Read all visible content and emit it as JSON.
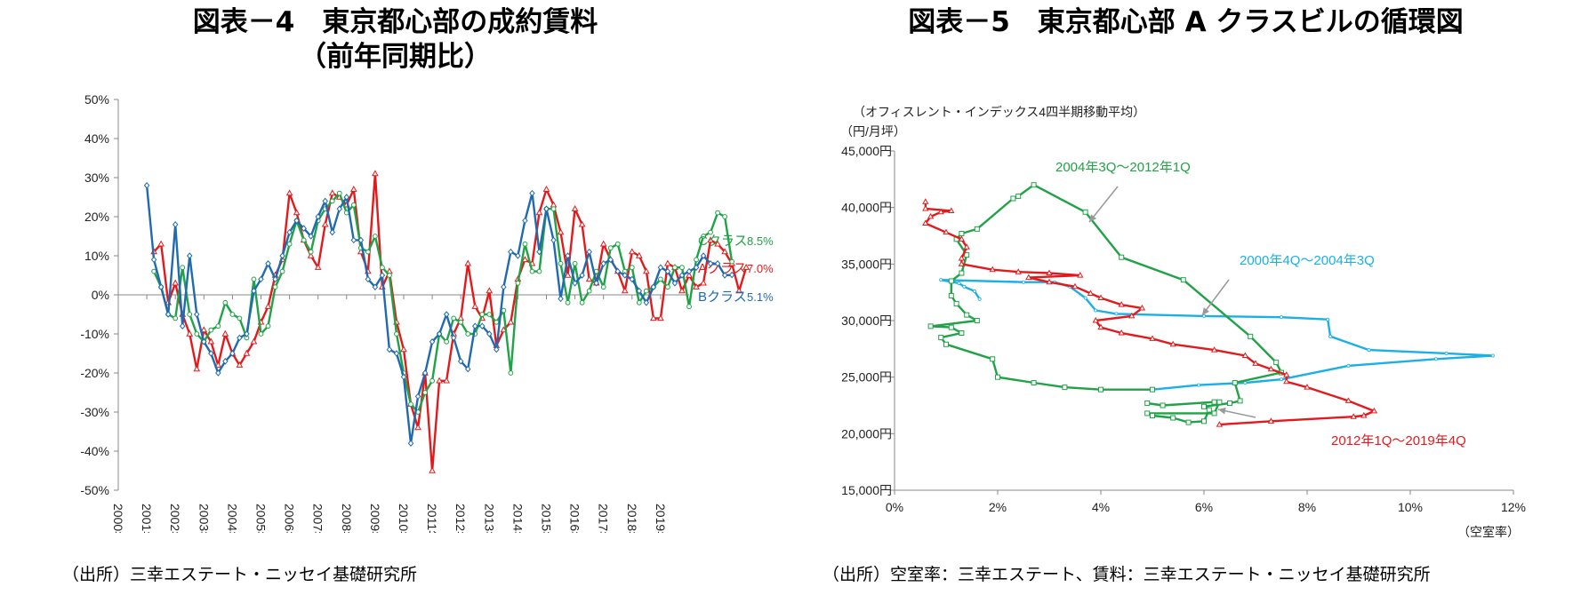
{
  "left": {
    "title_line1": "図表－4　東京都心部の成約賃料",
    "title_line2": "（前年同期比）",
    "source": "（出所）三幸エステート・ニッセイ基礎研究所"
  },
  "right": {
    "title": "図表－5　東京都心部 A クラスビルの循環図",
    "source": "（出所）空室率：三幸エステート、賃料：三幸エステート・ニッセイ基礎研究所"
  },
  "colors": {
    "red": "#e31a1c",
    "green": "#1fa346",
    "blue": "#1f6ab0",
    "lightblue": "#1ab0e6",
    "axis": "#888888"
  },
  "chart_data": [
    {
      "type": "line",
      "title": "図表－4　東京都心部の成約賃料（前年同期比）",
      "xlabel": "",
      "ylabel": "",
      "ylim": [
        -0.5,
        0.5
      ],
      "y_ticks": [
        "50%",
        "40%",
        "30%",
        "20%",
        "10%",
        "0%",
        "-10%",
        "-20%",
        "-30%",
        "-40%",
        "-50%"
      ],
      "x_ticks": [
        "2000年",
        "2001年",
        "2002年",
        "2003年",
        "2004年",
        "2005年",
        "2006年",
        "2007年",
        "2008年",
        "2009年",
        "2010年",
        "2011年",
        "2012年",
        "2013年",
        "2014年",
        "2015年",
        "2016年",
        "2017年",
        "2018年",
        "2019年"
      ],
      "x_unit": "quarter index from 2000年Q1",
      "series": [
        {
          "name": "Aクラス",
          "end_label": "Aクラス",
          "end_value": "7.0%",
          "color": "#e31a1c",
          "x_start": 5,
          "values": [
            0.11,
            0.13,
            -0.02,
            0.03,
            -0.05,
            -0.1,
            -0.19,
            -0.09,
            -0.12,
            -0.18,
            -0.1,
            -0.15,
            -0.18,
            -0.15,
            -0.12,
            -0.07,
            -0.03,
            0.05,
            0.09,
            0.26,
            0.21,
            0.14,
            0.1,
            0.07,
            0.18,
            0.26,
            0.25,
            0.23,
            0.27,
            0.11,
            0.06,
            0.31,
            0.02,
            0.06,
            -0.07,
            -0.14,
            -0.28,
            -0.34,
            -0.2,
            -0.45,
            -0.22,
            -0.22,
            -0.1,
            -0.06,
            0.08,
            -0.03,
            -0.06,
            0.01,
            -0.13,
            -0.09,
            -0.07,
            0.04,
            0.09,
            0.08,
            0.21,
            0.27,
            0.23,
            0.16,
            0.05,
            0.22,
            0.18,
            0.04,
            0.03,
            0.13,
            0.09,
            0.06,
            0.01,
            0.11,
            0.1,
            0.06,
            -0.06,
            -0.06,
            0.08,
            0.07,
            0.01,
            0.05,
            0.02,
            0.03,
            0.14,
            0.13,
            0.11,
            0.08,
            0.01,
            0.07
          ]
        },
        {
          "name": "Cクラス",
          "end_label": "Cクラス",
          "end_value": "8.5%",
          "color": "#1fa346",
          "x_start": 5,
          "values": [
            0.06,
            0.02,
            -0.05,
            -0.06,
            0.07,
            -0.05,
            -0.1,
            -0.12,
            -0.09,
            -0.08,
            -0.02,
            -0.05,
            -0.06,
            -0.11,
            0.04,
            -0.1,
            -0.08,
            0.02,
            0.06,
            0.13,
            0.19,
            0.14,
            0.11,
            0.19,
            0.22,
            0.24,
            0.26,
            0.21,
            0.23,
            0.12,
            0.11,
            0.15,
            0.07,
            0.05,
            -0.1,
            -0.2,
            -0.28,
            -0.3,
            -0.25,
            -0.22,
            -0.1,
            -0.12,
            -0.06,
            -0.07,
            -0.1,
            -0.1,
            -0.05,
            -0.05,
            -0.07,
            -0.04,
            -0.2,
            0.03,
            0.13,
            0.06,
            0.06,
            0.22,
            0.22,
            0.08,
            -0.02,
            0.08,
            -0.02,
            0.01,
            0.06,
            0.02,
            0.12,
            0.13,
            0.06,
            0.07,
            -0.02,
            0.01,
            0.02,
            0.04,
            0.02,
            0.07,
            0.07,
            -0.03,
            0.09,
            0.15,
            0.16,
            0.21,
            0.2,
            0.085
          ]
        },
        {
          "name": "Bクラス",
          "end_label": "Bクラス",
          "end_value": "5.1%",
          "color": "#1f6ab0",
          "x_start": 4,
          "values": [
            0.28,
            0.09,
            0.02,
            -0.05,
            0.18,
            -0.08,
            0.1,
            -0.05,
            -0.12,
            -0.15,
            -0.2,
            -0.17,
            -0.15,
            -0.11,
            -0.1,
            0.01,
            0.04,
            0.08,
            0.04,
            0.1,
            0.16,
            0.19,
            0.17,
            0.15,
            0.2,
            0.24,
            0.16,
            0.22,
            0.25,
            0.14,
            0.14,
            0.04,
            0.02,
            0.05,
            -0.14,
            -0.15,
            -0.21,
            -0.38,
            -0.26,
            -0.2,
            -0.12,
            -0.1,
            -0.05,
            -0.11,
            -0.17,
            -0.19,
            -0.08,
            -0.08,
            -0.1,
            -0.14,
            0.02,
            0.11,
            0.1,
            0.19,
            0.26,
            0.11,
            0.22,
            0.14,
            -0.01,
            0.1,
            0.03,
            0.05,
            0.11,
            0.03,
            0.08,
            0.09,
            0.06,
            0.05,
            0.04,
            0.01,
            -0.02,
            0.02,
            0.07,
            0.06,
            0.03,
            0.05,
            0.06,
            0.07,
            0.1,
            0.08,
            0.08,
            0.05,
            0.051
          ]
        }
      ]
    },
    {
      "type": "line",
      "title": "図表－5　東京都心部 A クラスビルの循環図",
      "subtitle": "（オフィスレント・インデックス4四半期移動平均）",
      "xlabel": "（空室率）",
      "ylabel": "（円/月坪）",
      "xlim": [
        0,
        0.12
      ],
      "ylim": [
        15000,
        45000
      ],
      "x_ticks": [
        "0%",
        "2%",
        "4%",
        "6%",
        "8%",
        "10%",
        "12%"
      ],
      "y_ticks": [
        "45,000円",
        "40,000円",
        "35,000円",
        "30,000円",
        "25,000円",
        "20,000円",
        "15,000円"
      ],
      "series": [
        {
          "name": "2000年4Q～2004年3Q",
          "color": "#1ab0e6",
          "points": [
            [
              0.0165,
              31.9
            ],
            [
              0.0155,
              32.6
            ],
            [
              0.0135,
              33.0
            ],
            [
              0.0125,
              33.3
            ],
            [
              0.009,
              33.6
            ],
            [
              0.025,
              33.4
            ],
            [
              0.031,
              33.4
            ],
            [
              0.034,
              33.0
            ],
            [
              0.037,
              32.0
            ],
            [
              0.039,
              30.9
            ],
            [
              0.043,
              30.6
            ],
            [
              0.06,
              30.4
            ],
            [
              0.075,
              30.3
            ],
            [
              0.084,
              30.1
            ],
            [
              0.0845,
              28.6
            ],
            [
              0.092,
              27.4
            ],
            [
              0.107,
              27.1
            ],
            [
              0.116,
              26.9
            ],
            [
              0.105,
              26.6
            ],
            [
              0.088,
              26.0
            ],
            [
              0.075,
              24.8
            ],
            [
              0.068,
              24.5
            ],
            [
              0.059,
              24.3
            ],
            [
              0.05,
              23.9
            ]
          ]
        },
        {
          "name": "2004年3Q～2012年1Q",
          "color": "#1fa346",
          "points": [
            [
              0.05,
              23.9
            ],
            [
              0.04,
              23.9
            ],
            [
              0.033,
              24.1
            ],
            [
              0.027,
              24.5
            ],
            [
              0.02,
              25.0
            ],
            [
              0.019,
              26.6
            ],
            [
              0.01,
              27.9
            ],
            [
              0.009,
              28.5
            ],
            [
              0.013,
              28.9
            ],
            [
              0.011,
              29.4
            ],
            [
              0.007,
              29.5
            ],
            [
              0.016,
              30.0
            ],
            [
              0.014,
              30.5
            ],
            [
              0.012,
              31.5
            ],
            [
              0.011,
              32.2
            ],
            [
              0.011,
              33.5
            ],
            [
              0.013,
              34.2
            ],
            [
              0.014,
              35.8
            ],
            [
              0.012,
              37.2
            ],
            [
              0.013,
              37.7
            ],
            [
              0.016,
              38.1
            ],
            [
              0.023,
              40.8
            ],
            [
              0.024,
              41.0
            ],
            [
              0.027,
              42.0
            ],
            [
              0.037,
              39.6
            ],
            [
              0.044,
              35.6
            ],
            [
              0.056,
              33.6
            ],
            [
              0.069,
              28.6
            ],
            [
              0.074,
              26.3
            ],
            [
              0.075,
              25.4
            ],
            [
              0.066,
              24.5
            ],
            [
              0.067,
              22.9
            ],
            [
              0.065,
              22.7
            ],
            [
              0.06,
              22.4
            ],
            [
              0.061,
              22.1
            ],
            [
              0.06,
              21.1
            ],
            [
              0.057,
              21.0
            ],
            [
              0.054,
              21.4
            ],
            [
              0.05,
              21.6
            ],
            [
              0.049,
              21.8
            ],
            [
              0.062,
              21.8
            ],
            [
              0.063,
              22.8
            ],
            [
              0.062,
              22.8
            ],
            [
              0.052,
              22.5
            ],
            [
              0.049,
              22.7
            ]
          ]
        },
        {
          "name": "2012年1Q～2019年4Q",
          "color": "#e31a1c",
          "points": [
            [
              0.063,
              20.8
            ],
            [
              0.073,
              21.1
            ],
            [
              0.089,
              21.5
            ],
            [
              0.091,
              21.6
            ],
            [
              0.093,
              22.0
            ],
            [
              0.088,
              22.9
            ],
            [
              0.08,
              24.1
            ],
            [
              0.076,
              24.6
            ],
            [
              0.076,
              25.2
            ],
            [
              0.073,
              25.7
            ],
            [
              0.07,
              26.2
            ],
            [
              0.068,
              26.9
            ],
            [
              0.062,
              27.4
            ],
            [
              0.054,
              27.9
            ],
            [
              0.05,
              28.4
            ],
            [
              0.044,
              28.9
            ],
            [
              0.04,
              29.4
            ],
            [
              0.039,
              30.0
            ],
            [
              0.046,
              30.4
            ],
            [
              0.048,
              31.1
            ],
            [
              0.044,
              31.4
            ],
            [
              0.04,
              32.0
            ],
            [
              0.038,
              32.4
            ],
            [
              0.035,
              33.0
            ],
            [
              0.03,
              33.4
            ],
            [
              0.026,
              33.8
            ],
            [
              0.036,
              34.0
            ],
            [
              0.03,
              34.2
            ],
            [
              0.024,
              34.3
            ],
            [
              0.019,
              34.5
            ],
            [
              0.013,
              35.0
            ],
            [
              0.013,
              35.5
            ],
            [
              0.014,
              36.5
            ],
            [
              0.013,
              37.2
            ],
            [
              0.01,
              37.8
            ],
            [
              0.006,
              38.6
            ],
            [
              0.007,
              39.2
            ],
            [
              0.009,
              39.6
            ],
            [
              0.011,
              39.7
            ],
            [
              0.006,
              39.9
            ],
            [
              0.006,
              40.5
            ]
          ]
        }
      ]
    }
  ]
}
